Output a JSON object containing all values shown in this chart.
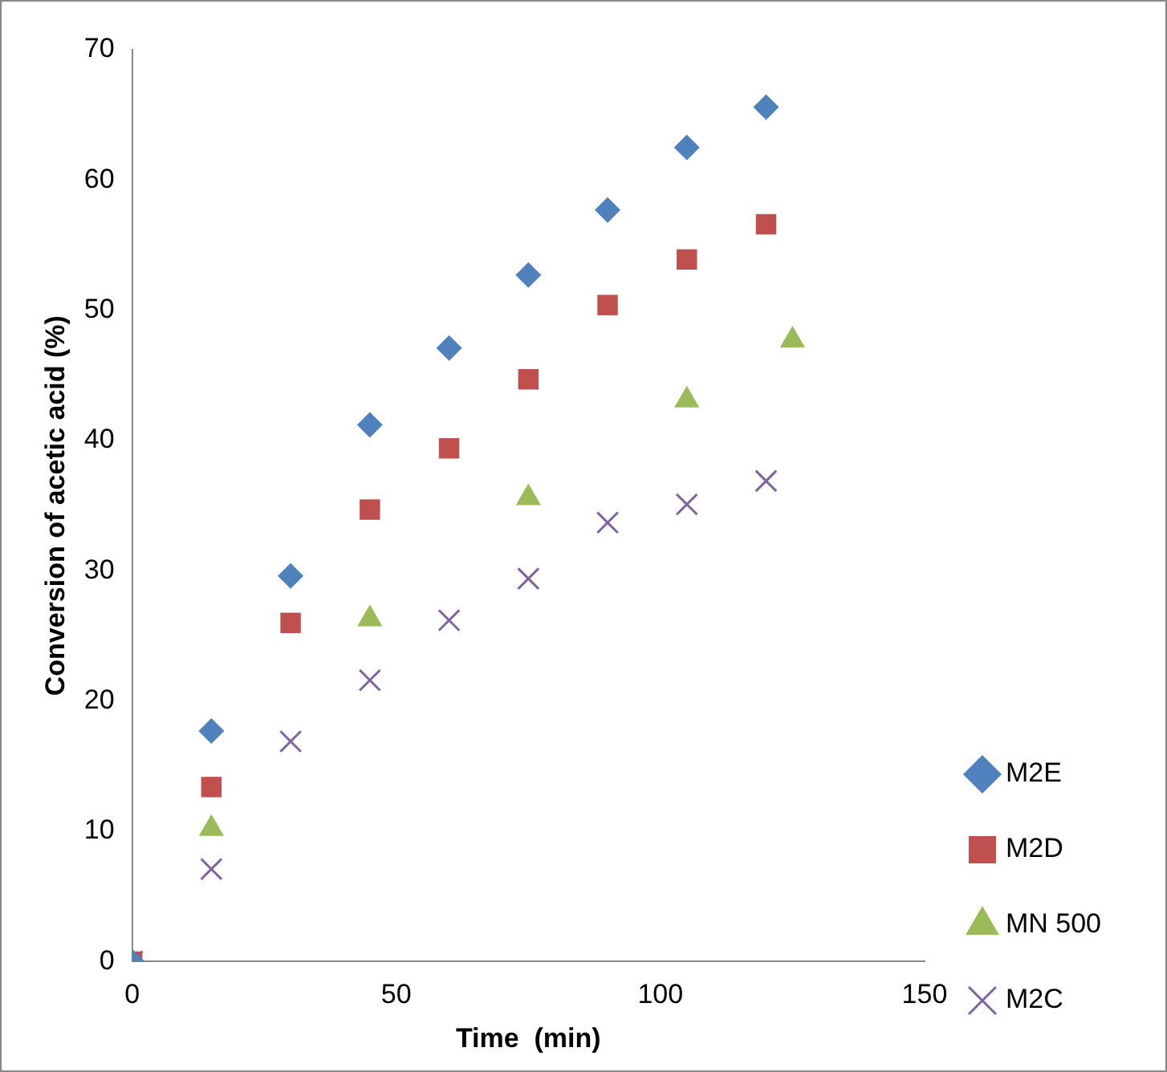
{
  "chart_data": {
    "type": "scatter",
    "xlabel": "Time  (min)",
    "ylabel": "Conversion of acetic acid (%)",
    "xlim": [
      0,
      150
    ],
    "xticks": [
      0,
      50,
      100,
      150
    ],
    "ylim": [
      0,
      70
    ],
    "yticks": [
      0,
      10,
      20,
      30,
      40,
      50,
      60,
      70
    ],
    "grid": false,
    "legend": "right",
    "series": [
      {
        "name": "M2E",
        "color": "#4f81bd",
        "marker": "diamond",
        "x": [
          0,
          15,
          30,
          45,
          60,
          75,
          90,
          105,
          120
        ],
        "values": [
          0,
          17.7,
          29.6,
          41.2,
          47.1,
          52.7,
          57.7,
          62.5,
          65.6
        ]
      },
      {
        "name": "M2D",
        "color": "#c0504d",
        "marker": "square",
        "x": [
          0,
          15,
          30,
          45,
          60,
          75,
          90,
          105,
          120
        ],
        "values": [
          0,
          13.4,
          26.0,
          34.7,
          39.4,
          44.7,
          50.4,
          53.9,
          56.6
        ]
      },
      {
        "name": "MN 500",
        "color": "#9bbb59",
        "marker": "triangle",
        "x": [
          0,
          15,
          45,
          75,
          105,
          125
        ],
        "values": [
          0,
          10.2,
          26.3,
          35.6,
          43.1,
          47.7
        ]
      },
      {
        "name": "M2C",
        "color": "#8064a2",
        "marker": "cross",
        "x": [
          0,
          15,
          30,
          45,
          60,
          75,
          90,
          105,
          120
        ],
        "values": [
          0,
          7.1,
          16.9,
          21.6,
          26.2,
          29.4,
          33.7,
          35.1,
          36.9
        ]
      }
    ]
  }
}
